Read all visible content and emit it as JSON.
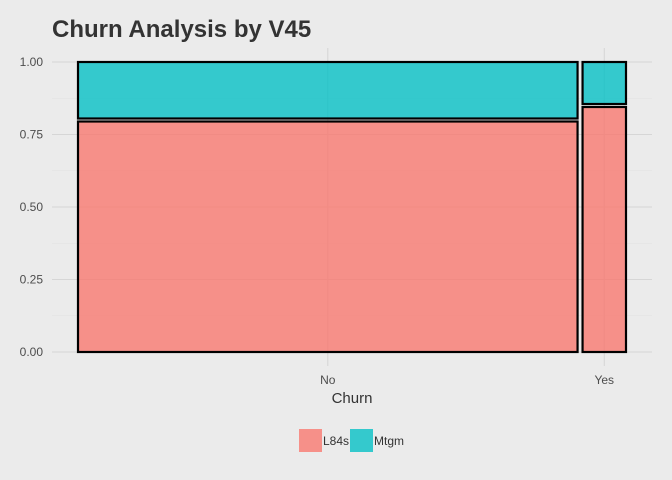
{
  "chart_data": {
    "type": "bar",
    "variant": "mosaic",
    "title": "Churn Analysis by V45",
    "xlabel": "Churn",
    "ylabel": "",
    "ylim": [
      0,
      1
    ],
    "yticks": [
      "0.00",
      "0.25",
      "0.50",
      "0.75",
      "1.00"
    ],
    "categories": [
      "No",
      "Yes"
    ],
    "category_widths": [
      0.92,
      0.08
    ],
    "series": [
      {
        "name": "L84s",
        "color": "#f8766d",
        "values": [
          0.8,
          0.85
        ]
      },
      {
        "name": "Mtgm",
        "color": "#00bfc4",
        "values": [
          0.2,
          0.15
        ]
      }
    ],
    "legend_position": "bottom",
    "grid": true
  }
}
